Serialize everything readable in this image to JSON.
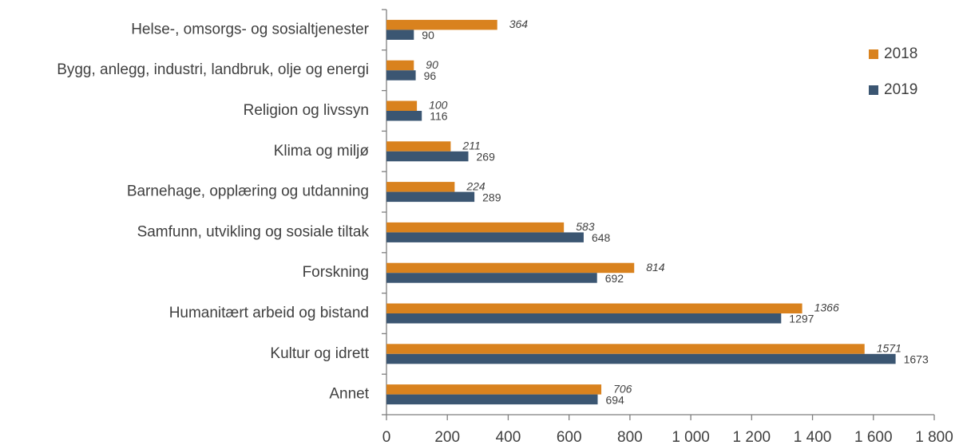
{
  "chart_data": {
    "type": "hbar",
    "categories": [
      "Helse-, omsorgs- og sosialtjenester",
      "Bygg, anlegg, industri, landbruk, olje og energi",
      "Religion og livssyn",
      "Klima og miljø",
      "Barnehage, opplæring og utdanning",
      "Samfunn, utvikling og sosiale tiltak",
      "Forskning",
      "Humanitært arbeid og bistand",
      "Kultur og idrett",
      "Annet"
    ],
    "series": [
      {
        "name": "2018",
        "color": "#d9821e",
        "values": [
          364,
          90,
          100,
          211,
          224,
          583,
          814,
          1366,
          1571,
          706
        ]
      },
      {
        "name": "2019",
        "color": "#3b5672",
        "values": [
          90,
          96,
          116,
          269,
          289,
          648,
          692,
          1297,
          1673,
          694
        ]
      }
    ],
    "xlim": [
      0,
      1800
    ],
    "xticks": [
      0,
      200,
      400,
      600,
      800,
      {
        "value": 1000,
        "label": "1 000"
      },
      {
        "value": 1200,
        "label": "1 200"
      },
      {
        "value": 1400,
        "label": "1 400"
      },
      {
        "value": 1600,
        "label": "1 600"
      },
      {
        "value": 1800,
        "label": "1 800"
      }
    ],
    "legend": "right"
  }
}
